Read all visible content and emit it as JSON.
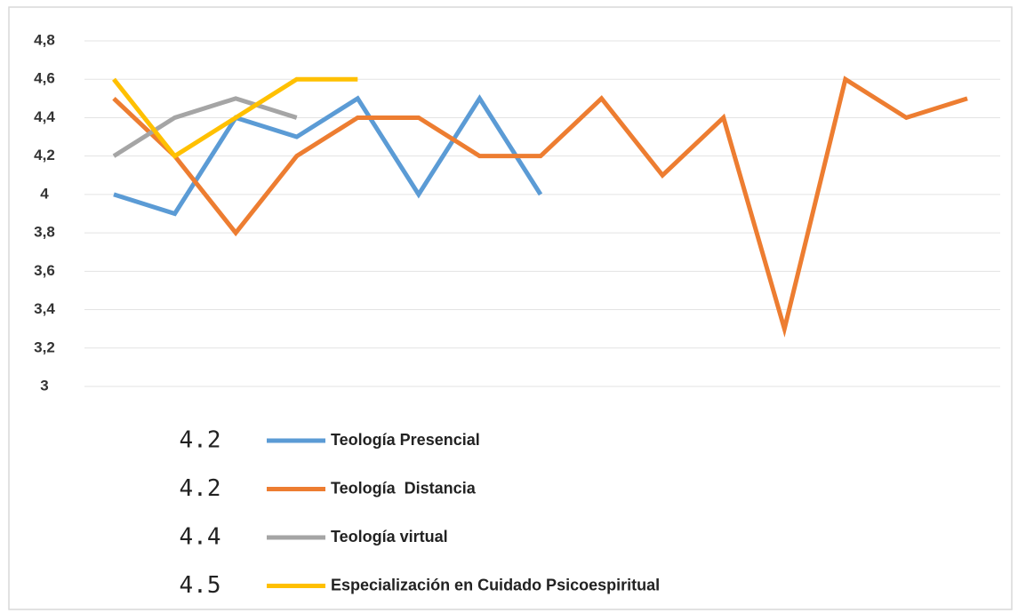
{
  "chart_data": {
    "type": "line",
    "categories": [
      null,
      null,
      null,
      null,
      null,
      null,
      null,
      null,
      null,
      null,
      null,
      null,
      null,
      null,
      null
    ],
    "series": [
      {
        "name": "Teología Presencial",
        "color": "#5b9bd5",
        "values": [
          4.0,
          3.9,
          4.4,
          4.3,
          4.5,
          4.0,
          4.5,
          4.0,
          null,
          null,
          null,
          null,
          null,
          null,
          null
        ]
      },
      {
        "name": "Teología  Distancia",
        "color": "#ed7d31",
        "values": [
          4.5,
          4.2,
          3.8,
          4.2,
          4.4,
          4.4,
          4.2,
          4.2,
          4.5,
          4.1,
          4.4,
          3.3,
          4.6,
          4.4,
          4.5
        ]
      },
      {
        "name": "Teología virtual",
        "color": "#a5a5a5",
        "values": [
          4.2,
          4.4,
          4.5,
          4.4,
          null,
          null,
          null,
          null,
          null,
          null,
          null,
          null,
          null,
          null,
          null
        ]
      },
      {
        "name": "Especialización en Cuidado Psicoespiritual",
        "color": "#ffc000",
        "values": [
          4.6,
          4.2,
          4.4,
          4.6,
          4.6,
          null,
          null,
          null,
          null,
          null,
          null,
          null,
          null,
          null,
          null
        ]
      }
    ],
    "legend_values": [
      4.2,
      4.2,
      4.4,
      4.5
    ],
    "ylim": [
      3,
      4.8
    ],
    "yticks": [
      3,
      {
        "value": 3.2,
        "label": "3,2"
      },
      {
        "value": 3.4,
        "label": "3,4"
      },
      {
        "value": 3.6,
        "label": "3,6"
      },
      {
        "value": 3.8,
        "label": "3,8"
      },
      4,
      {
        "value": 4.2,
        "label": "4,2"
      },
      {
        "value": 4.4,
        "label": "4,4"
      },
      {
        "value": 4.6,
        "label": "4,6"
      },
      {
        "value": 4.8,
        "label": "4,8"
      }
    ],
    "grid": true
  }
}
